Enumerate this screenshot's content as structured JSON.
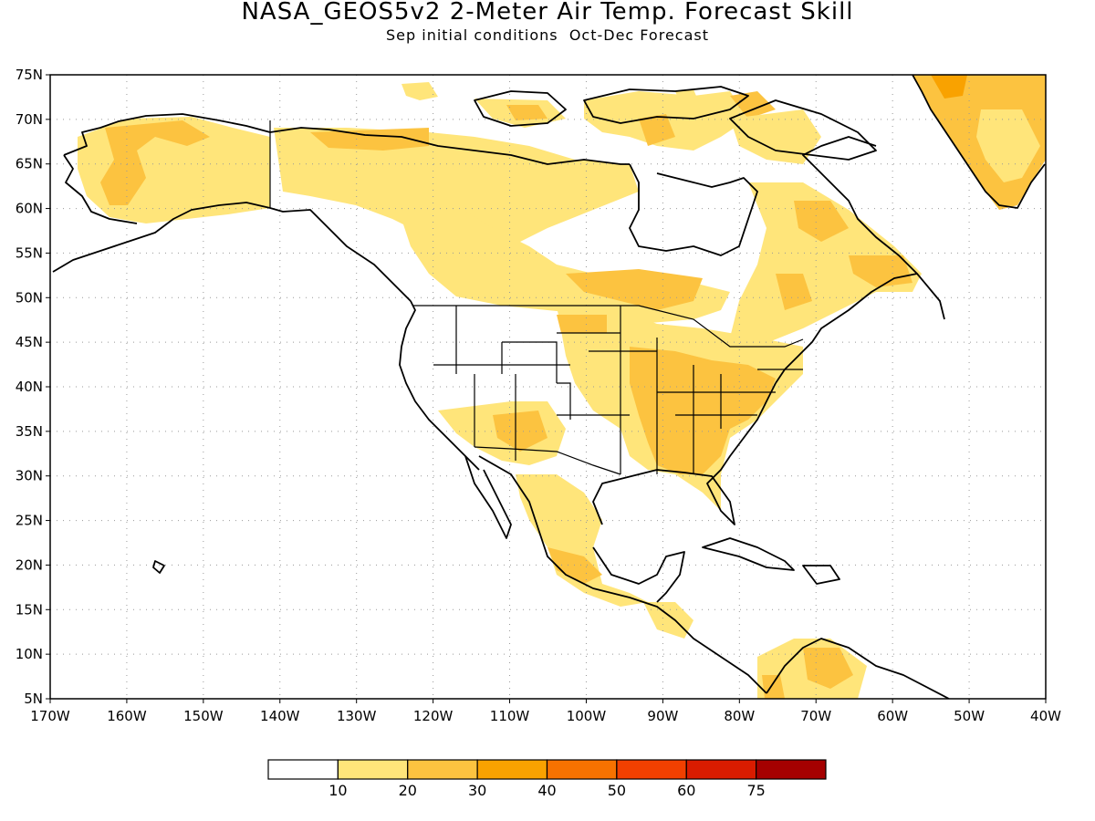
{
  "title": "NASA_GEOS5v2 2-Meter Air Temp. Forecast Skill",
  "subtitle": "Sep initial conditions  Oct-Dec Forecast",
  "map": {
    "lon_range": [
      -170,
      -40
    ],
    "lat_range": [
      5,
      75
    ],
    "lat_ticks": [
      "75N",
      "70N",
      "65N",
      "60N",
      "55N",
      "50N",
      "45N",
      "40N",
      "35N",
      "30N",
      "25N",
      "20N",
      "15N",
      "10N",
      "5N"
    ],
    "lon_ticks": [
      "170W",
      "160W",
      "150W",
      "140W",
      "130W",
      "120W",
      "110W",
      "100W",
      "90W",
      "80W",
      "70W",
      "60W",
      "50W",
      "40W"
    ],
    "gridlines": true
  },
  "colorbar": {
    "labels": [
      "10",
      "20",
      "30",
      "40",
      "50",
      "60",
      "75"
    ],
    "colors": [
      "#ffffff",
      "#ffe57a",
      "#fcc340",
      "#f9a200",
      "#f77200",
      "#f14000",
      "#d91c00",
      "#a50000"
    ]
  }
}
